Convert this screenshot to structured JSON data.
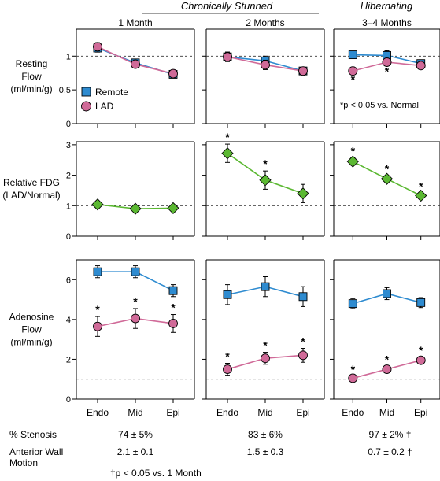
{
  "chart_data": {
    "type": "line",
    "group_headers": [
      "Chronically Stunned",
      "Hibernating"
    ],
    "column_titles": [
      "1 Month",
      "2 Months",
      "3–4 Months"
    ],
    "x_categories": [
      "Endo",
      "Mid",
      "Epi"
    ],
    "legend": {
      "placement": "inside left",
      "entries": [
        "Remote",
        "LAD"
      ]
    },
    "colors": {
      "remote": "#2e8bd0",
      "lad": "#d06a98",
      "fdg": "#5bb832"
    },
    "rows": [
      {
        "ylabel": [
          "Resting",
          "Flow",
          "(ml/min/g)"
        ],
        "ylim": [
          0,
          1.4
        ],
        "yticks": [
          "0",
          "0.5",
          "1"
        ],
        "reference_line": 1,
        "panels": [
          {
            "series": [
              {
                "name": "Remote",
                "marker": "square",
                "values": [
                  1.12,
                  0.9,
                  0.73
                ],
                "errors": [
                  0.06,
                  0.05,
                  0.05
                ],
                "sig": [
                  false,
                  false,
                  false
                ]
              },
              {
                "name": "LAD",
                "marker": "circle",
                "values": [
                  1.14,
                  0.88,
                  0.74
                ],
                "errors": [
                  0.06,
                  0.05,
                  0.05
                ],
                "sig": [
                  false,
                  false,
                  false
                ]
              }
            ]
          },
          {
            "series": [
              {
                "name": "Remote",
                "marker": "square",
                "values": [
                  0.99,
                  0.93,
                  0.78
                ],
                "errors": [
                  0.07,
                  0.07,
                  0.06
                ],
                "sig": [
                  false,
                  false,
                  false
                ]
              },
              {
                "name": "LAD",
                "marker": "circle",
                "values": [
                  0.99,
                  0.87,
                  0.78
                ],
                "errors": [
                  0.07,
                  0.07,
                  0.06
                ],
                "sig": [
                  false,
                  false,
                  false
                ]
              }
            ]
          },
          {
            "series": [
              {
                "name": "Remote",
                "marker": "square",
                "values": [
                  1.02,
                  1.01,
                  0.89
                ],
                "errors": [
                  0.05,
                  0.07,
                  0.05
                ],
                "sig": [
                  false,
                  false,
                  false
                ]
              },
              {
                "name": "LAD",
                "marker": "circle",
                "values": [
                  0.78,
                  0.91,
                  0.86
                ],
                "errors": [
                  0.03,
                  0.04,
                  0.04
                ],
                "sig": [
                  true,
                  true,
                  false
                ]
              }
            ]
          }
        ],
        "annotation": "*p < 0.05 vs. Normal"
      },
      {
        "ylabel": [
          "Relative FDG",
          "(LAD/Normal)"
        ],
        "ylim": [
          0,
          3.1
        ],
        "yticks": [
          "0",
          "1",
          "2",
          "3"
        ],
        "reference_line": 1,
        "panels": [
          {
            "series": [
              {
                "name": "",
                "marker": "diamond",
                "values": [
                  1.04,
                  0.9,
                  0.92
                ],
                "errors": [
                  0.1,
                  0.09,
                  0.1
                ],
                "sig": [
                  false,
                  false,
                  false
                ]
              }
            ]
          },
          {
            "series": [
              {
                "name": "",
                "marker": "diamond",
                "values": [
                  2.72,
                  1.84,
                  1.4
                ],
                "errors": [
                  0.3,
                  0.3,
                  0.3
                ],
                "sig": [
                  true,
                  true,
                  false
                ]
              }
            ]
          },
          {
            "series": [
              {
                "name": "",
                "marker": "diamond",
                "values": [
                  2.45,
                  1.88,
                  1.33
                ],
                "errors": [
                  0.12,
                  0.1,
                  0.08
                ],
                "sig": [
                  true,
                  true,
                  true
                ]
              }
            ]
          }
        ]
      },
      {
        "ylabel": [
          "Adenosine",
          "Flow",
          "(ml/min/g)"
        ],
        "ylim": [
          0,
          7
        ],
        "yticks": [
          "0",
          "2",
          "4",
          "6"
        ],
        "reference_line": 1,
        "panels": [
          {
            "series": [
              {
                "name": "Remote",
                "marker": "square",
                "values": [
                  6.4,
                  6.4,
                  5.45
                ],
                "errors": [
                  0.3,
                  0.3,
                  0.3
                ],
                "sig": [
                  false,
                  false,
                  false
                ]
              },
              {
                "name": "LAD",
                "marker": "circle",
                "values": [
                  3.65,
                  4.05,
                  3.8
                ],
                "errors": [
                  0.5,
                  0.5,
                  0.45
                ],
                "sig": [
                  true,
                  true,
                  true
                ]
              }
            ]
          },
          {
            "series": [
              {
                "name": "Remote",
                "marker": "square",
                "values": [
                  5.25,
                  5.65,
                  5.15
                ],
                "errors": [
                  0.5,
                  0.5,
                  0.5
                ],
                "sig": [
                  false,
                  false,
                  false
                ]
              },
              {
                "name": "LAD",
                "marker": "circle",
                "values": [
                  1.5,
                  2.05,
                  2.2
                ],
                "errors": [
                  0.3,
                  0.3,
                  0.35
                ],
                "sig": [
                  true,
                  true,
                  true
                ]
              }
            ]
          },
          {
            "series": [
              {
                "name": "Remote",
                "marker": "square",
                "values": [
                  4.8,
                  5.3,
                  4.85
                ],
                "errors": [
                  0.25,
                  0.3,
                  0.25
                ],
                "sig": [
                  false,
                  false,
                  false
                ]
              },
              {
                "name": "LAD",
                "marker": "circle",
                "values": [
                  1.05,
                  1.5,
                  1.95
                ],
                "errors": [
                  0.1,
                  0.15,
                  0.15
                ],
                "sig": [
                  true,
                  true,
                  true
                ]
              }
            ]
          }
        ]
      }
    ],
    "footer": {
      "rows": [
        {
          "label": [
            "% Stenosis"
          ],
          "values": [
            "74 ± 5%",
            "83 ± 6%",
            "97 ± 2% †"
          ]
        },
        {
          "label": [
            "Anterior Wall",
            "Motion"
          ],
          "values": [
            "2.1 ± 0.1",
            "1.5 ± 0.3",
            "0.7 ± 0.2 †"
          ]
        }
      ],
      "note": "†p < 0.05 vs. 1 Month"
    }
  }
}
